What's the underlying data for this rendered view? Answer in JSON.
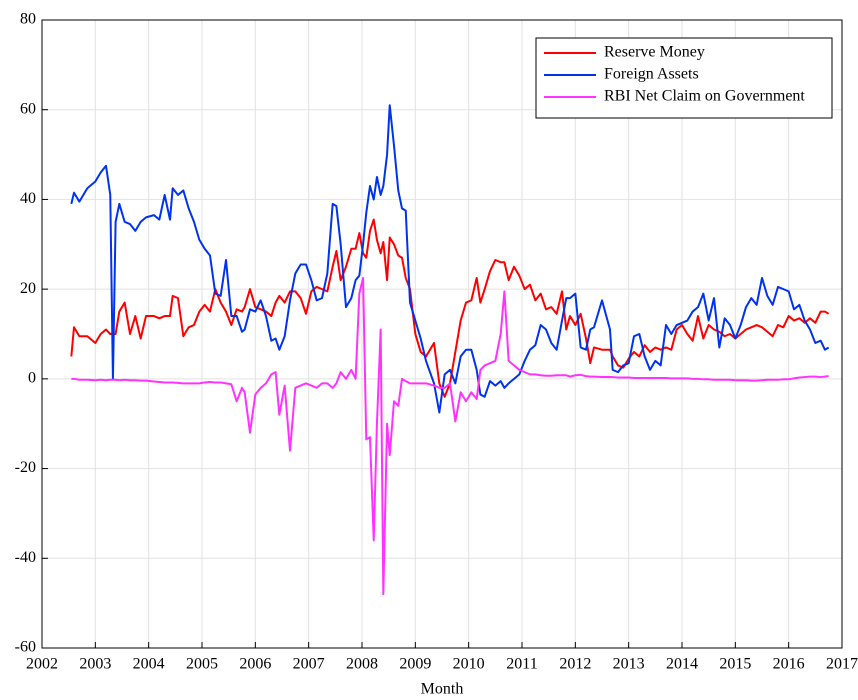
{
  "chart_data": {
    "type": "line",
    "x_label": "Month",
    "xlim": [
      2002,
      2017
    ],
    "xticks": [
      2002,
      2003,
      2004,
      2005,
      2006,
      2007,
      2008,
      2009,
      2010,
      2011,
      2012,
      2013,
      2014,
      2015,
      2016,
      2017
    ],
    "ylim": [
      -60,
      80
    ],
    "yticks": [
      -60,
      -40,
      -20,
      0,
      20,
      40,
      60,
      80
    ],
    "grid": true,
    "legend": "upper right",
    "x": [
      2002.55,
      2002.6,
      2002.7,
      2002.85,
      2003.0,
      2003.1,
      2003.2,
      2003.28,
      2003.33,
      2003.38,
      2003.45,
      2003.55,
      2003.65,
      2003.75,
      2003.85,
      2003.95,
      2004.1,
      2004.2,
      2004.3,
      2004.4,
      2004.45,
      2004.55,
      2004.65,
      2004.75,
      2004.85,
      2004.95,
      2005.05,
      2005.15,
      2005.25,
      2005.35,
      2005.45,
      2005.55,
      2005.65,
      2005.75,
      2005.8,
      2005.9,
      2006.0,
      2006.1,
      2006.2,
      2006.3,
      2006.38,
      2006.45,
      2006.55,
      2006.65,
      2006.75,
      2006.85,
      2006.95,
      2007.05,
      2007.15,
      2007.25,
      2007.35,
      2007.45,
      2007.52,
      2007.6,
      2007.7,
      2007.8,
      2007.88,
      2007.95,
      2008.02,
      2008.08,
      2008.15,
      2008.22,
      2008.28,
      2008.35,
      2008.4,
      2008.47,
      2008.52,
      2008.6,
      2008.68,
      2008.75,
      2008.82,
      2008.9,
      2009.0,
      2009.1,
      2009.2,
      2009.35,
      2009.45,
      2009.55,
      2009.65,
      2009.75,
      2009.85,
      2009.95,
      2010.05,
      2010.15,
      2010.22,
      2010.3,
      2010.4,
      2010.5,
      2010.6,
      2010.67,
      2010.75,
      2010.85,
      2010.95,
      2011.05,
      2011.15,
      2011.25,
      2011.35,
      2011.45,
      2011.55,
      2011.65,
      2011.75,
      2011.83,
      2011.9,
      2012.0,
      2012.1,
      2012.2,
      2012.28,
      2012.35,
      2012.5,
      2012.65,
      2012.7,
      2012.8,
      2012.9,
      2013.0,
      2013.1,
      2013.2,
      2013.3,
      2013.4,
      2013.5,
      2013.6,
      2013.7,
      2013.8,
      2013.9,
      2014.0,
      2014.1,
      2014.2,
      2014.3,
      2014.4,
      2014.5,
      2014.6,
      2014.7,
      2014.8,
      2014.9,
      2015.0,
      2015.1,
      2015.2,
      2015.3,
      2015.4,
      2015.5,
      2015.6,
      2015.7,
      2015.8,
      2015.9,
      2016.0,
      2016.1,
      2016.2,
      2016.3,
      2016.4,
      2016.5,
      2016.6,
      2016.68,
      2016.75
    ],
    "series": [
      {
        "name": "Reserve Money",
        "color": "#ff0000",
        "values": [
          5,
          11.5,
          9.5,
          9.5,
          8,
          10,
          11,
          10,
          10,
          10,
          15,
          17,
          10,
          14,
          9,
          14,
          14,
          13.5,
          14,
          14,
          18.5,
          18,
          9.5,
          11.5,
          12,
          15,
          16.5,
          15,
          20,
          17,
          15,
          12,
          15.5,
          15,
          16,
          20,
          16,
          15.5,
          15,
          14,
          17,
          18.5,
          17,
          19.5,
          19.5,
          18,
          14.5,
          19.5,
          20.5,
          20,
          19.5,
          25,
          28.5,
          22,
          25,
          29,
          29,
          32.5,
          28,
          27,
          33,
          35.5,
          31,
          28,
          30.5,
          22,
          31.5,
          30,
          27.5,
          27,
          22.5,
          20,
          10,
          6,
          5,
          8,
          -1,
          -4,
          -1,
          6,
          13,
          17,
          17.5,
          22.5,
          17,
          20,
          24,
          26.5,
          26,
          26,
          22,
          25,
          23,
          20,
          21,
          17.5,
          19,
          15.5,
          16,
          14.5,
          19.5,
          11,
          14,
          12,
          14.5,
          9,
          3.5,
          7,
          6.5,
          6.5,
          5,
          3,
          2.5,
          4.5,
          6,
          5,
          7.5,
          6,
          7,
          6.5,
          7,
          6.5,
          11,
          12,
          10,
          8.5,
          14,
          9,
          12,
          11,
          10.5,
          9.5,
          10,
          9,
          10,
          11,
          11.5,
          12,
          11.5,
          10.5,
          9.5,
          12,
          11.5,
          14,
          13,
          13.5,
          12.5,
          13.5,
          12.5,
          15,
          15,
          14.5
        ]
      },
      {
        "name": "Foreign Assets",
        "color": "#0033ee",
        "values": [
          39,
          41.5,
          39.5,
          42.5,
          44,
          46,
          47.5,
          41,
          0,
          35,
          39,
          35,
          34.5,
          33,
          35,
          36,
          36.5,
          35.5,
          41,
          35.5,
          42.5,
          41,
          42,
          38,
          35,
          31,
          29,
          27.5,
          19,
          18.5,
          26.5,
          14,
          14,
          10.5,
          11,
          15.5,
          15,
          17.5,
          14,
          8.5,
          9,
          6.5,
          9.5,
          17.5,
          23.5,
          25.5,
          25.5,
          22,
          17.5,
          18,
          23.5,
          39,
          38.5,
          30,
          16,
          18,
          22,
          23,
          30,
          37,
          43,
          40,
          45,
          41,
          43,
          50,
          61,
          52,
          42,
          38,
          37.5,
          17,
          13,
          9,
          4,
          -1,
          -7.5,
          1,
          2,
          -1,
          5,
          6.5,
          6.5,
          2,
          -3.5,
          -4,
          -0.5,
          -1.5,
          -0.5,
          -2,
          -1,
          0,
          1,
          4,
          6.5,
          7.5,
          12,
          11,
          8,
          6.5,
          13,
          18,
          18,
          19,
          7,
          6.5,
          11,
          11.5,
          17.5,
          11,
          2,
          1.5,
          3,
          3.5,
          9.5,
          10,
          5,
          2,
          4,
          3,
          12,
          10,
          12,
          12.5,
          13,
          15,
          16,
          19,
          13,
          18,
          7,
          13.5,
          12,
          9,
          12,
          16,
          18,
          16.5,
          22.5,
          18.5,
          16.5,
          20.5,
          20,
          19.5,
          15.5,
          16.5,
          13,
          11,
          8,
          8.5,
          6.5,
          7
        ]
      },
      {
        "name": "RBI Net Claim on Government",
        "color": "#ff33ff",
        "values": [
          0,
          0,
          -0.2,
          -0.2,
          -0.3,
          -0.2,
          -0.3,
          -0.2,
          -0.2,
          -0.2,
          -0.3,
          -0.2,
          -0.3,
          -0.3,
          -0.4,
          -0.4,
          -0.6,
          -0.7,
          -0.8,
          -0.8,
          -0.8,
          -0.9,
          -1,
          -1,
          -1,
          -1,
          -0.8,
          -0.7,
          -0.8,
          -0.8,
          -1,
          -1.2,
          -5,
          -2,
          -3,
          -12,
          -3.5,
          -2,
          -1,
          1,
          1.5,
          -8,
          -1.5,
          -16,
          -2,
          -1.5,
          -1,
          -1.5,
          -2,
          -1,
          -1,
          -2,
          -1,
          1.5,
          0,
          2,
          0,
          19,
          22.5,
          -13.5,
          -13,
          -36,
          -10,
          11,
          -48,
          -10,
          -17,
          -5,
          -6,
          0,
          -0.5,
          -1,
          -1,
          -1,
          -1,
          -1.5,
          -2,
          -2,
          -1,
          -9.5,
          -3,
          -5,
          -3,
          -4.5,
          2,
          3,
          3.5,
          4,
          10,
          19.5,
          4,
          3,
          2,
          1.5,
          1,
          1,
          0.8,
          0.7,
          0.7,
          0.8,
          0.8,
          0.8,
          0.5,
          0.8,
          0.9,
          0.6,
          0.5,
          0.5,
          0.4,
          0.4,
          0.4,
          0.3,
          0.3,
          0.3,
          0.2,
          0.2,
          0.2,
          0.2,
          0.2,
          0.2,
          0.2,
          0.1,
          0.1,
          0.1,
          0.1,
          0,
          0,
          -0.1,
          -0.1,
          -0.2,
          -0.2,
          -0.2,
          -0.2,
          -0.3,
          -0.3,
          -0.3,
          -0.4,
          -0.4,
          -0.3,
          -0.2,
          -0.2,
          -0.2,
          -0.1,
          -0.1,
          0.1,
          0.3,
          0.4,
          0.5,
          0.5,
          0.4,
          0.5,
          0.6
        ]
      }
    ]
  }
}
